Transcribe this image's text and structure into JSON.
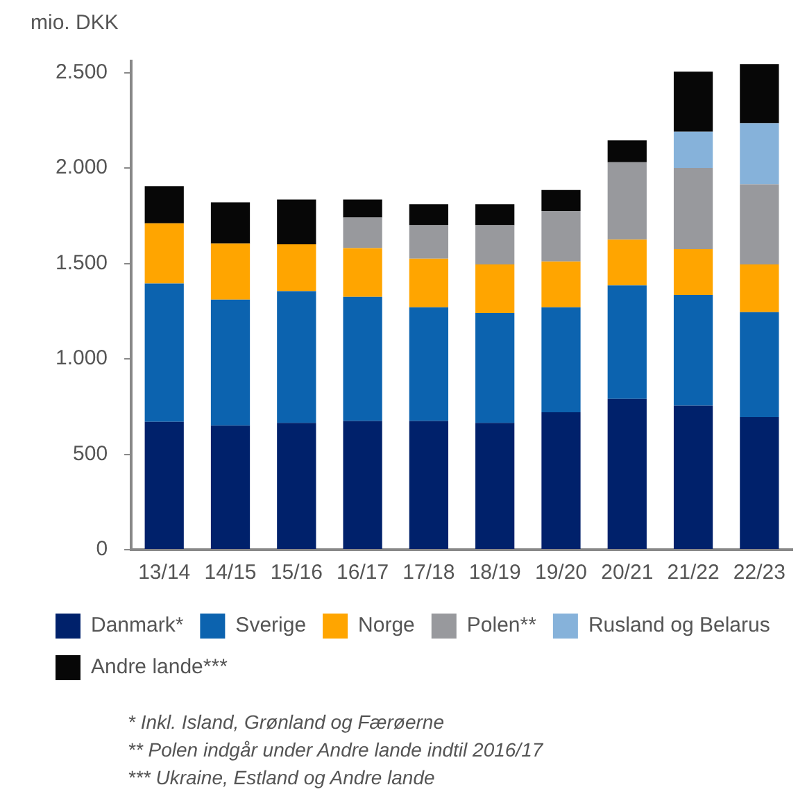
{
  "chart_data": {
    "type": "bar",
    "ylabel": "mio. DKK",
    "stacked": true,
    "grid": false,
    "legend": "bottom",
    "categories": [
      "13/14",
      "14/15",
      "15/16",
      "16/17",
      "17/18",
      "18/19",
      "19/20",
      "20/21",
      "21/22",
      "22/23"
    ],
    "ylim": [
      0,
      2560
    ],
    "yticks": [
      0,
      500,
      {
        "value": 1000,
        "label": "1.000"
      },
      {
        "value": 1500,
        "label": "1.500"
      },
      {
        "value": 2000,
        "label": "2.000"
      },
      {
        "value": 2500,
        "label": "2.500"
      }
    ],
    "series": [
      {
        "name": "Danmark*",
        "color": "#00216b",
        "values": [
          670,
          650,
          665,
          675,
          675,
          665,
          720,
          790,
          755,
          695
        ]
      },
      {
        "name": "Sverige",
        "color": "#0c63af",
        "values": [
          725,
          660,
          690,
          650,
          595,
          575,
          550,
          595,
          580,
          550
        ]
      },
      {
        "name": "Norge",
        "color": "#ffa500",
        "values": [
          315,
          295,
          245,
          255,
          255,
          255,
          240,
          240,
          240,
          250
        ]
      },
      {
        "name": "Polen**",
        "color": "#98999d",
        "values": [
          null,
          null,
          null,
          160,
          175,
          205,
          265,
          405,
          425,
          420
        ]
      },
      {
        "name": "Rusland og Belarus",
        "color": "#86b2da",
        "values": [
          null,
          null,
          null,
          null,
          null,
          null,
          null,
          null,
          190,
          320
        ]
      },
      {
        "name": "Andre lande***",
        "color": "#070707",
        "values": [
          195,
          215,
          235,
          95,
          110,
          110,
          110,
          115,
          315,
          310
        ]
      }
    ],
    "annotations": [
      "* Inkl. Island, Grønland og Færøerne",
      "** Polen indgår under Andre lande indtil 2016/17",
      "*** Ukraine, Estland og Andre lande"
    ]
  }
}
